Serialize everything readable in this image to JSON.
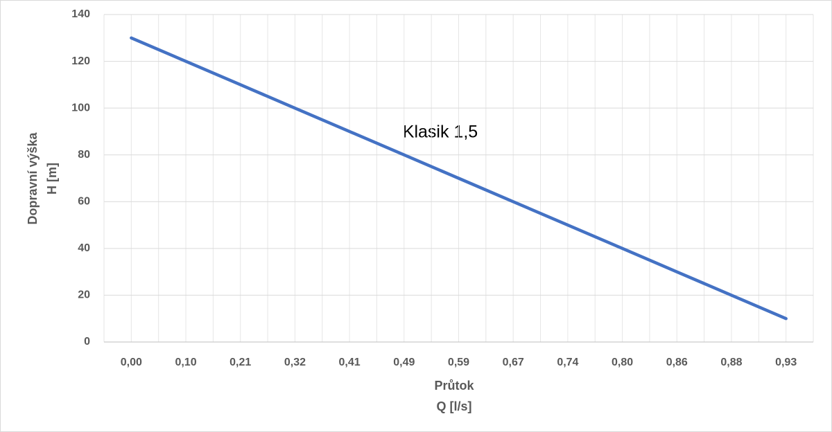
{
  "chart_data": {
    "type": "line",
    "annotation": "Klasik 1,5",
    "xlabel": [
      "Průtok",
      "Q [l/s]"
    ],
    "ylabel": [
      "Dopravní výška",
      "H [m]"
    ],
    "categories": [
      "0,00",
      "0,10",
      "0,21",
      "0,32",
      "0,41",
      "0,49",
      "0,59",
      "0,67",
      "0,74",
      "0,80",
      "0,86",
      "0,88",
      "0,93"
    ],
    "series": [
      {
        "color": "#4472c4",
        "values": [
          130,
          120,
          110,
          100,
          90,
          80,
          70,
          60,
          50,
          40,
          30,
          20,
          10
        ]
      }
    ],
    "ylim": [
      0,
      140
    ],
    "yticks": [
      0,
      20,
      40,
      60,
      80,
      100,
      120,
      140
    ],
    "grid": true
  }
}
